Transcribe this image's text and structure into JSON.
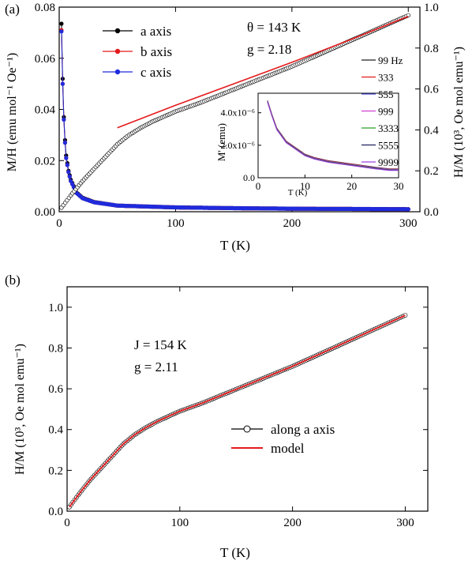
{
  "chart_data": [
    {
      "panel_label": "(a)",
      "type": "scatter",
      "xlabel": "T (K)",
      "ylabel_left": "M/H (emu mol⁻¹ Oe⁻¹)",
      "ylabel_right": "H/M (10³, Oe mol emu⁻¹)",
      "xlim": [
        0,
        310
      ],
      "ylim_left": [
        0,
        0.08
      ],
      "ylim_right": [
        0,
        1.0
      ],
      "xticks": [
        "0",
        "100",
        "200",
        "300"
      ],
      "yticks_left": [
        "0.00",
        "0.02",
        "0.04",
        "0.06",
        "0.08"
      ],
      "yticks_right": [
        "0.0",
        "0.2",
        "0.4",
        "0.6",
        "0.8",
        "1.0"
      ],
      "annotations": [
        "θ = 143 K",
        "g = 2.18"
      ],
      "legend_placement": "top-left",
      "series": [
        {
          "name": "a axis",
          "color": "#000000",
          "axis": "left",
          "x": [
            2,
            3,
            4,
            5,
            6,
            8,
            10,
            15,
            20,
            30,
            50,
            100,
            150,
            200,
            250,
            300
          ],
          "y": [
            0.0735,
            0.052,
            0.037,
            0.028,
            0.022,
            0.016,
            0.0125,
            0.0075,
            0.0055,
            0.0038,
            0.0024,
            0.0017,
            0.0014,
            0.0012,
            0.0011,
            0.001
          ]
        },
        {
          "name": "b axis",
          "color": "#e41a1c",
          "axis": "left",
          "x": [
            2,
            3,
            4,
            5,
            6,
            8,
            10,
            15,
            20,
            30,
            50,
            100,
            150,
            200,
            250,
            300
          ],
          "y": [
            0.071,
            0.05,
            0.036,
            0.027,
            0.021,
            0.0155,
            0.012,
            0.0073,
            0.0053,
            0.0037,
            0.0024,
            0.0017,
            0.0014,
            0.0012,
            0.0011,
            0.001
          ]
        },
        {
          "name": "c axis",
          "color": "#1f2bdc",
          "axis": "left",
          "x": [
            2,
            3,
            4,
            5,
            6,
            8,
            10,
            15,
            20,
            30,
            50,
            100,
            150,
            200,
            250,
            300
          ],
          "y": [
            0.0705,
            0.05,
            0.036,
            0.027,
            0.021,
            0.0155,
            0.012,
            0.0073,
            0.0053,
            0.0037,
            0.0024,
            0.0017,
            0.0014,
            0.0012,
            0.0011,
            0.001
          ]
        },
        {
          "name": "",
          "color": "#000000",
          "axis": "right",
          "marker": "open-circle",
          "x": [
            2,
            10,
            20,
            30,
            40,
            50,
            60,
            70,
            80,
            90,
            100,
            120,
            140,
            160,
            180,
            200,
            220,
            240,
            260,
            280,
            300
          ],
          "y": [
            0.02,
            0.08,
            0.15,
            0.21,
            0.27,
            0.33,
            0.375,
            0.41,
            0.44,
            0.465,
            0.49,
            0.53,
            0.575,
            0.62,
            0.665,
            0.71,
            0.76,
            0.81,
            0.86,
            0.91,
            0.96
          ]
        },
        {
          "name": "",
          "color": "#e41a1c",
          "axis": "right",
          "type": "line",
          "x": [
            50,
            100,
            150,
            200,
            250,
            300
          ],
          "y": [
            0.41,
            0.52,
            0.625,
            0.73,
            0.84,
            0.955
          ]
        }
      ],
      "inset": {
        "ylabel": "M' (emu)",
        "xlabel": "T (K)",
        "xlim": [
          0,
          30
        ],
        "ylim": [
          0,
          5.2e-06
        ],
        "xticks": [
          "0",
          "10",
          "20",
          "30"
        ],
        "yticks": [
          "0.0",
          "2.0x10⁻⁶",
          "4.0x10⁻⁶"
        ],
        "legend": [
          "99 Hz",
          "333",
          "555",
          "999",
          "3333",
          "5555",
          "9999"
        ],
        "colors": [
          "#222222",
          "#e41a1c",
          "#4b4bd6",
          "#d040d0",
          "#2ca02c",
          "#202060",
          "#a040e0"
        ],
        "x": [
          2,
          3,
          4,
          5,
          6,
          8,
          10,
          12,
          15,
          20,
          25,
          28,
          30
        ],
        "y": [
          4.7e-06,
          3.8e-06,
          3e-06,
          2.6e-06,
          2.2e-06,
          1.8e-06,
          1.4e-06,
          1.2e-06,
          1e-06,
          8e-07,
          6e-07,
          5e-07,
          5e-07
        ]
      }
    },
    {
      "panel_label": "(b)",
      "type": "scatter",
      "xlabel": "T (K)",
      "ylabel": "H/M (10³, Oe mol emu⁻¹)",
      "xlim": [
        0,
        320
      ],
      "ylim": [
        0,
        1.1
      ],
      "xticks": [
        "0",
        "100",
        "200",
        "300"
      ],
      "yticks": [
        "0.0",
        "0.2",
        "0.4",
        "0.6",
        "0.8",
        "1.0"
      ],
      "annotations": [
        "J = 154 K",
        "g = 2.11"
      ],
      "legend_placement": "center-right",
      "series": [
        {
          "name": "along a axis",
          "color": "#000000",
          "marker": "open-circle",
          "x": [
            2,
            10,
            20,
            30,
            40,
            50,
            60,
            70,
            80,
            90,
            100,
            120,
            140,
            160,
            180,
            200,
            220,
            240,
            260,
            280,
            300
          ],
          "y": [
            0.02,
            0.08,
            0.15,
            0.21,
            0.27,
            0.33,
            0.375,
            0.41,
            0.44,
            0.465,
            0.49,
            0.53,
            0.575,
            0.62,
            0.665,
            0.71,
            0.76,
            0.81,
            0.86,
            0.91,
            0.96
          ]
        },
        {
          "name": "model",
          "color": "#e41a1c",
          "type": "line",
          "x": [
            2,
            10,
            20,
            30,
            40,
            50,
            60,
            70,
            80,
            90,
            100,
            120,
            140,
            160,
            180,
            200,
            220,
            240,
            260,
            280,
            300
          ],
          "y": [
            0.02,
            0.08,
            0.15,
            0.21,
            0.27,
            0.33,
            0.375,
            0.41,
            0.44,
            0.465,
            0.49,
            0.53,
            0.575,
            0.62,
            0.665,
            0.71,
            0.76,
            0.81,
            0.86,
            0.91,
            0.96
          ]
        }
      ]
    }
  ]
}
